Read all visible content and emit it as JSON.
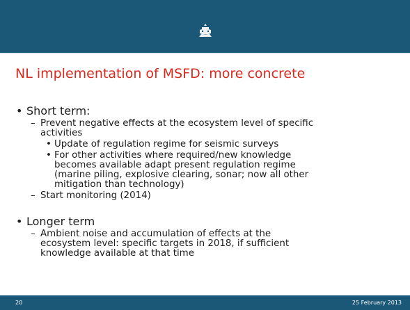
{
  "title": "NL implementation of MSFD: more concrete",
  "bullets": [
    {
      "lines": [
        "Short term:"
      ],
      "children": [
        {
          "lines": [
            "Prevent negative effects at the ecosystem level of specific",
            "activities"
          ],
          "children": [
            {
              "lines": [
                "Update of regulation regime for seismic surveys"
              ]
            },
            {
              "lines": [
                "For other activities where required/new knowledge",
                "becomes available adapt present regulation regime",
                "(marine piling, explosive clearing, sonar; now all other",
                "mitigation than technology)"
              ]
            }
          ]
        },
        {
          "lines": [
            "Start monitoring (2014)"
          ]
        }
      ]
    },
    {
      "lines": [
        "Longer term"
      ],
      "children": [
        {
          "lines": [
            "Ambient noise and accumulation of effects at the",
            "ecosystem level: specific targets in 2018, if sufficient",
            "knowledge available at that time"
          ]
        }
      ]
    }
  ],
  "footer": {
    "slide_number": "20",
    "date": "25 February 2013"
  }
}
